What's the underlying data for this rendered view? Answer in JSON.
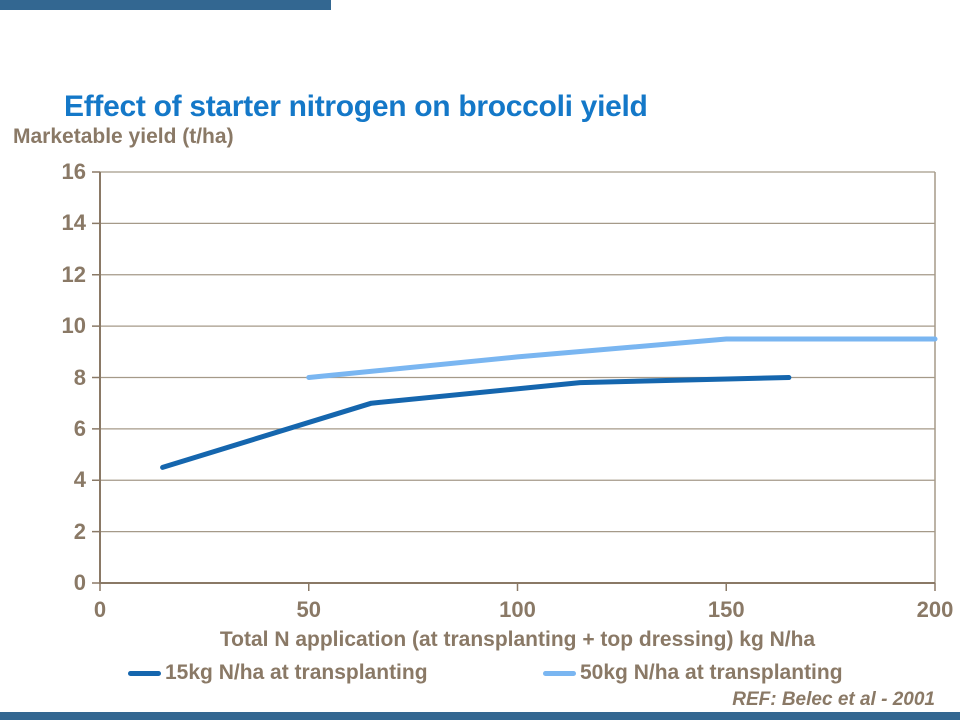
{
  "slide": {
    "title": "Effect of starter nitrogen on broccoli yield",
    "ref": "REF: Belec et al - 2001"
  },
  "colors": {
    "background": "#FFFFFF",
    "title": "#1478C8",
    "text": "#8A7966",
    "axis": "#8A7966",
    "grid": "#A59A89",
    "accent_bar": "#336791",
    "series1": "#1566AE",
    "series2": "#7AB6F1"
  },
  "chart_data": {
    "type": "line",
    "title": "Effect of starter nitrogen on broccoli yield",
    "ylabel": "Marketable yield (t/ha)",
    "xlabel": "Total N application (at transplanting + top dressing) kg N/ha",
    "xlim": [
      0,
      200
    ],
    "ylim": [
      0,
      16
    ],
    "x_ticks": [
      0,
      50,
      100,
      150,
      200
    ],
    "y_ticks": [
      0,
      2,
      4,
      6,
      8,
      10,
      12,
      14,
      16
    ],
    "grid": "horizontal",
    "legend_position": "bottom",
    "series": [
      {
        "name": "15kg N/ha at transplanting",
        "color": "#1566AE",
        "points": [
          [
            15,
            4.5
          ],
          [
            65,
            7.0
          ],
          [
            115,
            7.8
          ],
          [
            165,
            8.0
          ]
        ]
      },
      {
        "name": "50kg N/ha at transplanting",
        "color": "#7AB6F1",
        "points": [
          [
            50,
            8.0
          ],
          [
            100,
            8.8
          ],
          [
            150,
            9.5
          ],
          [
            200,
            9.5
          ]
        ]
      }
    ]
  }
}
